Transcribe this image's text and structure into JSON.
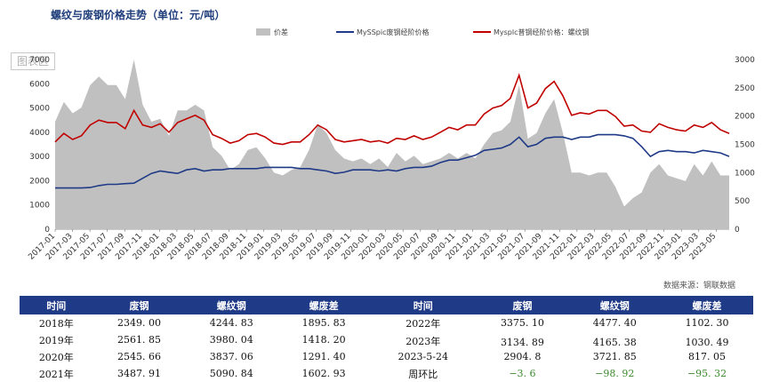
{
  "title": "螺纹与废钢价格走势（单位：元/吨）",
  "watermark": "图表区",
  "source": "数据来源：钢联数据",
  "chart_data": {
    "type": "area+line",
    "legend": [
      "价差",
      "MySSpic废钢经阶价格",
      "Mysplc普钢经阶价格：螺纹钢"
    ],
    "colors": {
      "spread": "#c0c0c0",
      "scrap": "#1f3a86",
      "rebar": "#c00000"
    },
    "yleft": {
      "min": 0,
      "max": 7000,
      "ticks": [
        "0",
        "1000",
        "2000",
        "3000",
        "4000",
        "5000",
        "6000",
        "7000"
      ]
    },
    "yright": {
      "min": 0,
      "max": 3000,
      "ticks": [
        "0",
        "500",
        "1000",
        "1500",
        "2000",
        "2500",
        "3000"
      ]
    },
    "xticks": [
      "2017-01",
      "2017-03",
      "2017-05",
      "2017-07",
      "2017-09",
      "2017-11",
      "2018-01",
      "2018-03",
      "2018-05",
      "2018-07",
      "2018-09",
      "2018-11",
      "2019-01",
      "2019-03",
      "2019-05",
      "2019-07",
      "2019-09",
      "2019-11",
      "2020-01",
      "2020-03",
      "2020-05",
      "2020-07",
      "2020-09",
      "2020-11",
      "2021-01",
      "2021-03",
      "2021-05",
      "2021-07",
      "2021-09",
      "2021-11",
      "2022-01",
      "2022-03",
      "2022-05",
      "2022-07",
      "2022-09",
      "2022-11",
      "2023-01",
      "2023-03",
      "2023-05"
    ],
    "x_months": [
      0,
      2,
      4,
      6,
      8,
      10,
      12,
      14,
      16,
      18,
      20,
      22,
      24,
      26,
      28,
      30,
      32,
      34,
      36,
      38,
      40,
      42,
      44,
      46,
      48,
      50,
      52,
      54,
      56,
      58,
      60,
      62,
      64,
      66,
      68,
      70,
      72,
      74,
      76,
      77.5
    ],
    "rebar": [
      3600,
      3950,
      3700,
      3850,
      4300,
      4500,
      4400,
      4400,
      4150,
      4900,
      4300,
      4200,
      4350,
      4000,
      4400,
      4550,
      4700,
      4500,
      3900,
      3750,
      3550,
      3650,
      3900,
      3950,
      3800,
      3550,
      3500,
      3600,
      3600,
      3900,
      4300,
      4100,
      3700,
      3600,
      3650,
      3700,
      3600,
      3650,
      3550,
      3750,
      3700,
      3850,
      3700,
      3800,
      4000,
      4200,
      4100,
      4300,
      4300,
      4750,
      5000,
      5100,
      5400,
      6350,
      5000,
      5200,
      5800,
      6100,
      5500,
      4700,
      4800,
      4750,
      4900,
      4900,
      4650,
      4250,
      4300,
      4050,
      4000,
      4350,
      4200,
      4100,
      4050,
      4300,
      4200,
      4400,
      4100,
      3950
    ],
    "scrap": [
      1700,
      1700,
      1700,
      1700,
      1720,
      1800,
      1850,
      1850,
      1880,
      1900,
      2100,
      2300,
      2400,
      2350,
      2300,
      2450,
      2500,
      2400,
      2450,
      2450,
      2500,
      2500,
      2500,
      2500,
      2550,
      2550,
      2550,
      2550,
      2500,
      2500,
      2450,
      2400,
      2300,
      2350,
      2450,
      2450,
      2450,
      2400,
      2450,
      2400,
      2500,
      2550,
      2550,
      2600,
      2750,
      2850,
      2850,
      2950,
      3050,
      3250,
      3300,
      3350,
      3500,
      3800,
      3400,
      3500,
      3750,
      3800,
      3800,
      3700,
      3800,
      3800,
      3900,
      3900,
      3900,
      3850,
      3750,
      3400,
      3000,
      3200,
      3250,
      3200,
      3200,
      3150,
      3250,
      3200,
      3150,
      3000
    ],
    "spread": [
      1900,
      2250,
      2050,
      2150,
      2550,
      2700,
      2550,
      2550,
      2300,
      3000,
      2200,
      1900,
      1950,
      1650,
      2100,
      2100,
      2200,
      2100,
      1450,
      1300,
      1050,
      1150,
      1400,
      1450,
      1250,
      1000,
      950,
      1050,
      1100,
      1400,
      1850,
      1700,
      1400,
      1250,
      1200,
      1250,
      1150,
      1250,
      1100,
      1350,
      1200,
      1300,
      1150,
      1200,
      1250,
      1350,
      1250,
      1350,
      1250,
      1500,
      1700,
      1750,
      1900,
      2550,
      1600,
      1700,
      2050,
      2300,
      1700,
      1000,
      1000,
      950,
      1000,
      1000,
      750,
      400,
      550,
      650,
      1000,
      1150,
      950,
      900,
      850,
      1150,
      950,
      1200,
      950,
      950
    ]
  },
  "table": {
    "headers": [
      "时间",
      "废钢",
      "螺纹钢",
      "螺废差",
      "时间",
      "废钢",
      "螺纹钢",
      "螺废差"
    ],
    "rows": [
      [
        "2018年",
        "2349. 00",
        "4244. 83",
        "1895. 83",
        "2022年",
        "3375. 10",
        "4477. 40",
        "1102. 30"
      ],
      [
        "2019年",
        "2561. 85",
        "3980. 04",
        "1418. 20",
        "",
        "",
        "",
        ""
      ],
      [
        "2020年",
        "2545. 66",
        "3837. 06",
        "1291. 40",
        "2023-5-24",
        "2904. 8",
        "3721. 85",
        "817. 05"
      ],
      [
        "2021年",
        "3487. 91",
        "5090. 84",
        "1602. 93",
        "周环比",
        "−3. 6",
        "−98. 92",
        "−95. 32"
      ]
    ],
    "row2023": [
      "2023年",
      "3134. 89",
      "4165. 38",
      "1030. 49"
    ]
  }
}
